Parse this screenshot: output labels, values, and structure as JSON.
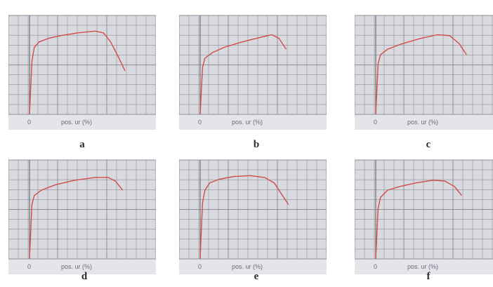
{
  "colors": {
    "grid_background": "#d9dadf",
    "grid_line": "#8e8f98",
    "curve": "#d24a4a",
    "axis_strip": "#e4e5ea",
    "text": "#6a6a7a"
  },
  "chart_data": [
    {
      "type": "line",
      "panel_letter": "a",
      "x_tick_label": "0",
      "xlabel": "pos. ur (%)",
      "grid": true,
      "series": [
        {
          "x": [
            0,
            1,
            2,
            4,
            8,
            16,
            26,
            40,
            55,
            62,
            68,
            75,
            80
          ],
          "y": [
            0,
            30,
            58,
            74,
            80,
            84,
            87,
            90,
            92,
            90,
            80,
            62,
            48
          ]
        }
      ]
    },
    {
      "type": "line",
      "panel_letter": "b",
      "x_tick_label": "0",
      "xlabel": "pos. ur (%)",
      "grid": true,
      "series": [
        {
          "x": [
            0,
            1,
            2,
            4,
            10,
            20,
            35,
            50,
            60,
            66,
            72
          ],
          "y": [
            0,
            26,
            52,
            62,
            68,
            74,
            80,
            85,
            88,
            84,
            72
          ]
        }
      ]
    },
    {
      "type": "line",
      "panel_letter": "c",
      "x_tick_label": "0",
      "xlabel": "pos. ur (%)",
      "grid": true,
      "series": [
        {
          "x": [
            0,
            1,
            2,
            4,
            10,
            22,
            38,
            52,
            62,
            70,
            76
          ],
          "y": [
            0,
            28,
            56,
            66,
            72,
            78,
            84,
            88,
            87,
            78,
            66
          ]
        }
      ]
    },
    {
      "type": "line",
      "panel_letter": "d",
      "x_tick_label": "0",
      "xlabel": "pos. ur (%)",
      "grid": true,
      "series": [
        {
          "x": [
            0,
            1,
            2,
            4,
            10,
            22,
            38,
            55,
            66,
            72,
            78
          ],
          "y": [
            0,
            30,
            60,
            70,
            76,
            82,
            87,
            90,
            90,
            86,
            76
          ]
        }
      ]
    },
    {
      "type": "line",
      "panel_letter": "e",
      "x_tick_label": "0",
      "xlabel": "pos. ur (%)",
      "grid": true,
      "series": [
        {
          "x": [
            0,
            1,
            2,
            4,
            8,
            16,
            28,
            42,
            54,
            62,
            68,
            74
          ],
          "y": [
            0,
            32,
            62,
            76,
            84,
            88,
            91,
            92,
            90,
            84,
            72,
            60
          ]
        }
      ]
    },
    {
      "type": "line",
      "panel_letter": "f",
      "x_tick_label": "0",
      "xlabel": "pos. ur (%)",
      "grid": true,
      "series": [
        {
          "x": [
            0,
            1,
            2,
            4,
            10,
            20,
            34,
            48,
            58,
            66,
            72
          ],
          "y": [
            0,
            28,
            56,
            68,
            76,
            80,
            84,
            87,
            86,
            80,
            70
          ]
        }
      ]
    }
  ]
}
